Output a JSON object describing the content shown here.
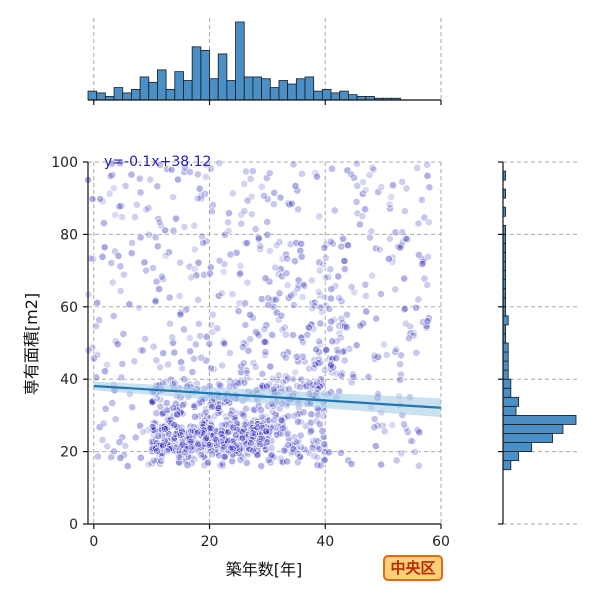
{
  "badge": {
    "label": "中央区"
  },
  "colors": {
    "points": "#2222bb",
    "regression": "#1f77b4",
    "band": "#9ecae1",
    "hist_fill": "#4a8fc6",
    "hist_edge": "#1a1a1a",
    "equation": "#1f1fb8"
  },
  "chart_data": {
    "type": "scatter",
    "xlabel": "築年数[年]",
    "ylabel": "専有面積[m2]",
    "xlim": [
      -1,
      60
    ],
    "ylim": [
      0,
      100
    ],
    "xticks": [
      0,
      20,
      40,
      60
    ],
    "yticks": [
      0,
      20,
      40,
      60,
      80,
      100
    ],
    "grid": true,
    "regression": {
      "slope": -0.1,
      "intercept": 38.12,
      "label": "y=-0.1x+38.12"
    },
    "clusters": [
      {
        "x": [
          10,
          40
        ],
        "y": [
          16,
          40
        ],
        "n": 420
      },
      {
        "x": [
          10,
          30
        ],
        "y": [
          20,
          28
        ],
        "n": 260
      },
      {
        "x": [
          -1,
          58
        ],
        "y": [
          16,
          100
        ],
        "n": 520
      },
      {
        "x": [
          25,
          45
        ],
        "y": [
          40,
          80
        ],
        "n": 120
      }
    ],
    "marginal_x": {
      "bin_start": -1,
      "bin_width": 1.5,
      "counts": [
        5,
        4,
        2,
        7,
        4,
        6,
        13,
        10,
        17,
        6,
        16,
        11,
        30,
        28,
        12,
        26,
        11,
        44,
        13,
        13,
        12,
        7,
        11,
        9,
        12,
        13,
        5,
        6,
        4,
        5,
        3,
        2,
        2,
        1,
        1,
        1
      ]
    },
    "marginal_y": {
      "bin_start": 15,
      "bin_width": 2.5,
      "counts": [
        3,
        6,
        11,
        19,
        23,
        28,
        5,
        6,
        3,
        3,
        2,
        2,
        2,
        2,
        1,
        1,
        2,
        1,
        1,
        1,
        1,
        1,
        1,
        1,
        1,
        1,
        1,
        0,
        1,
        0,
        1,
        0,
        1,
        0
      ]
    }
  }
}
